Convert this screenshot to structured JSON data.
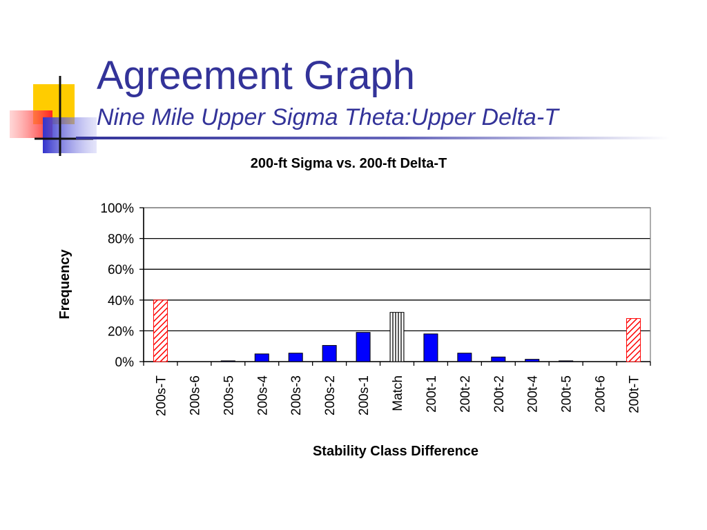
{
  "slide": {
    "title": "Agreement Graph",
    "subtitle": "Nine Mile Upper Sigma Theta:Upper Delta-T"
  },
  "colors": {
    "title": "#333399",
    "bar_blue": "#0000ff",
    "bar_hatch_red": "#ff0000",
    "bar_hatch_black": "#000000",
    "logo_yellow": "#ffcc00",
    "logo_red": "#ff3333",
    "logo_blue": "#3333cc"
  },
  "chart_data": {
    "type": "bar",
    "title": "200-ft Sigma vs. 200-ft Delta-T",
    "xlabel": "Stability Class Difference",
    "ylabel": "Frequency",
    "ylim": [
      0,
      100
    ],
    "yticks": [
      "0%",
      "20%",
      "40%",
      "60%",
      "80%",
      "100%"
    ],
    "grid": true,
    "legend": "none",
    "categories": [
      "200s-T",
      "200s-6",
      "200s-5",
      "200s-4",
      "200s-3",
      "200s-2",
      "200s-1",
      "Match",
      "200t-1",
      "200t-2",
      "200t-2",
      "200t-4",
      "200t-5",
      "200t-6",
      "200t-T"
    ],
    "values": [
      40,
      0,
      0.5,
      5,
      5.5,
      10.5,
      19,
      32,
      18,
      5.5,
      3,
      1.5,
      0.5,
      0,
      28
    ],
    "styles": [
      "hatch-red",
      "solid-blue",
      "solid-blue",
      "solid-blue",
      "solid-blue",
      "solid-blue",
      "solid-blue",
      "hatch-vertical",
      "solid-blue",
      "solid-blue",
      "solid-blue",
      "solid-blue",
      "solid-blue",
      "solid-blue",
      "hatch-red"
    ]
  }
}
